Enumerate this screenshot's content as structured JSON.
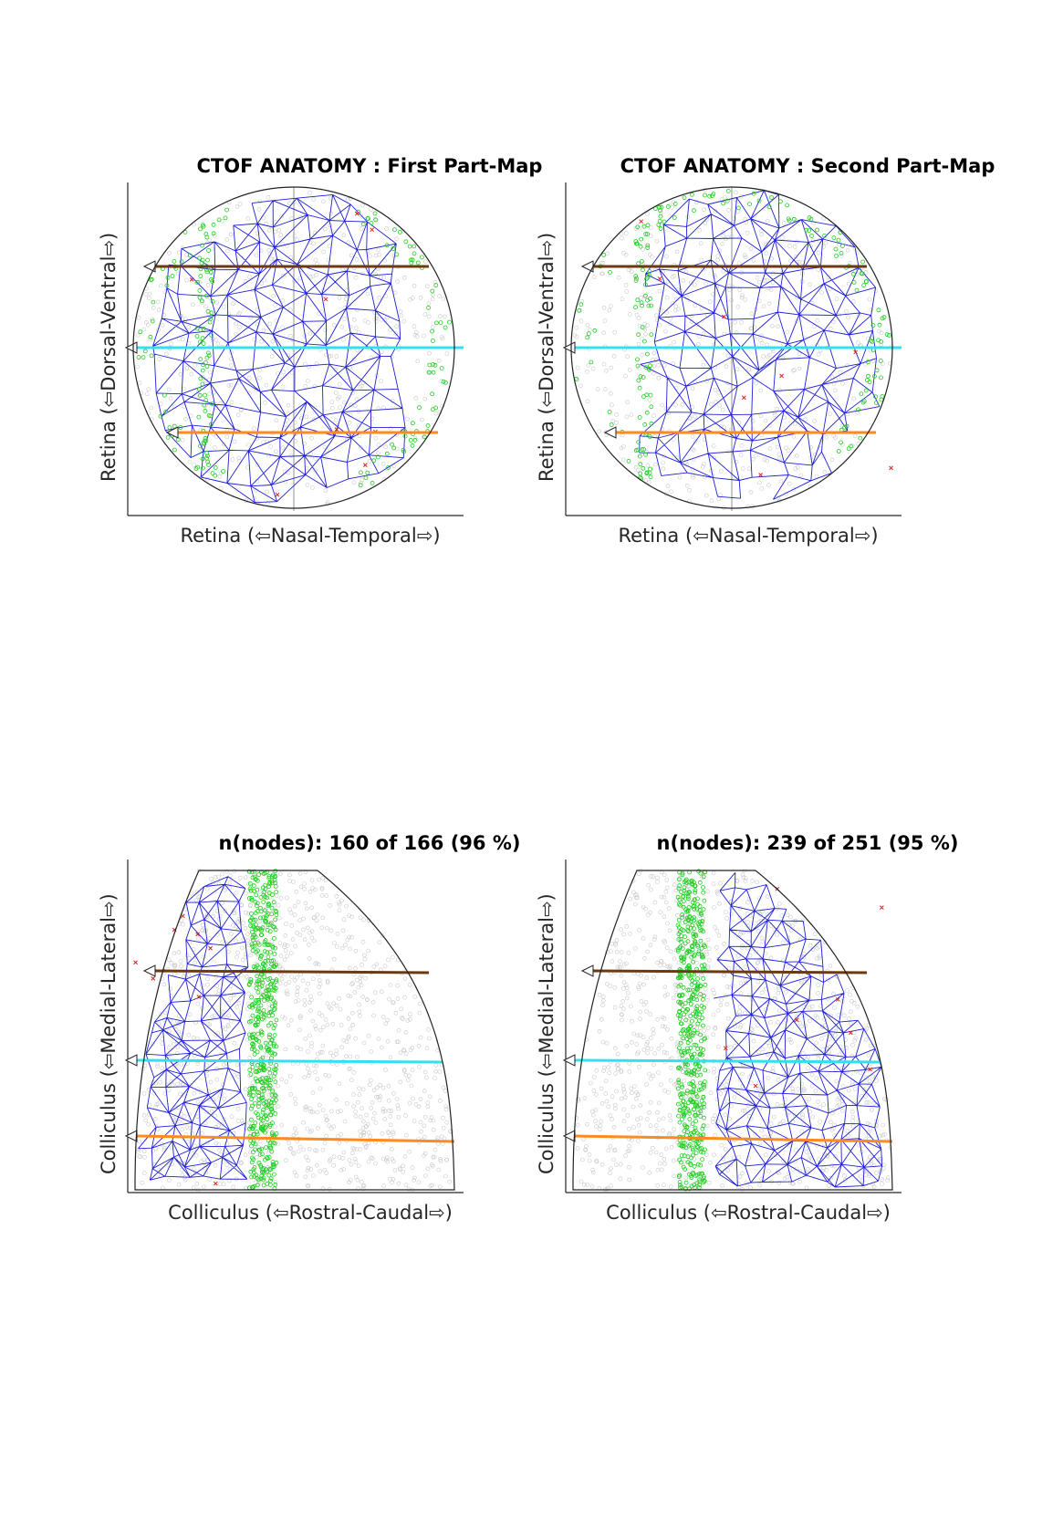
{
  "panels": [
    {
      "id": "retina-first",
      "title": "CTOF ANATOMY : First Part-Map",
      "xlabel": "Retina (⇦Nasal-Temporal⇨)",
      "ylabel": "Retina (⇦Dorsal-Ventral⇨)",
      "shape": "circle",
      "mesh_side": "left"
    },
    {
      "id": "retina-second",
      "title": "CTOF ANATOMY : Second Part-Map",
      "xlabel": "Retina (⇦Nasal-Temporal⇨)",
      "ylabel": "Retina (⇦Dorsal-Ventral⇨)",
      "shape": "circle",
      "mesh_side": "right"
    },
    {
      "id": "colliculus-first",
      "title": "n(nodes): 160 of 166 (96 %)",
      "xlabel": "Colliculus (⇦Rostral-Caudal⇨)",
      "ylabel": "Colliculus (⇦Medial-Lateral⇨)",
      "shape": "colliculus",
      "mesh_side": "left"
    },
    {
      "id": "colliculus-second",
      "title": "n(nodes): 239 of 251 (95 %)",
      "xlabel": "Colliculus (⇦Rostral-Caudal⇨)",
      "ylabel": "Colliculus (⇦Medial-Lateral⇨)",
      "shape": "colliculus",
      "mesh_side": "right"
    }
  ],
  "colors": {
    "mesh": "#1f1fd6",
    "boundary_points": "#22cc22",
    "background_points": "#c8c8c8",
    "outliers": "#dd2222",
    "line_top": "#6b3a12",
    "line_middle": "#33e0f0",
    "line_bottom": "#ff8a1f",
    "axes": "#262626",
    "crosshair": "#b0b0b0"
  }
}
